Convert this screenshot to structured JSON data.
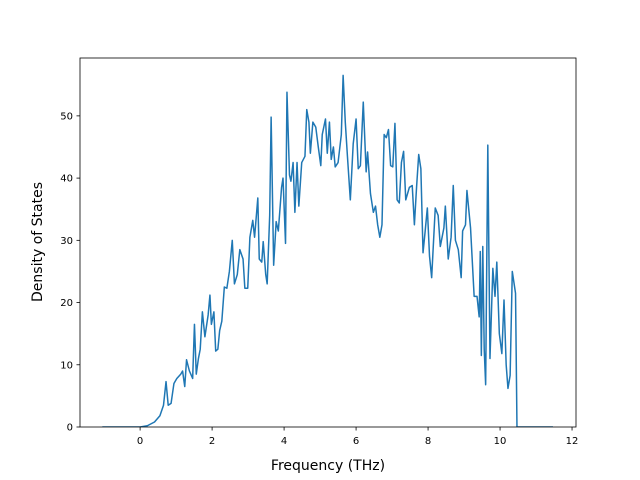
{
  "chart_data": {
    "type": "line",
    "x_label": "Frequency (THz)",
    "y_label": "Density of States",
    "color": "#1f77b4",
    "x": [
      -1.05,
      0,
      0.2,
      0.4,
      0.55,
      0.65,
      0.72,
      0.78,
      0.86,
      0.94,
      1.02,
      1.13,
      1.18,
      1.24,
      1.29,
      1.37,
      1.46,
      1.51,
      1.56,
      1.62,
      1.67,
      1.73,
      1.8,
      1.89,
      1.94,
      1.98,
      2.05,
      2.1,
      2.16,
      2.21,
      2.27,
      2.34,
      2.41,
      2.48,
      2.56,
      2.62,
      2.7,
      2.77,
      2.86,
      2.91,
      2.99,
      3.05,
      3.13,
      3.18,
      3.27,
      3.31,
      3.38,
      3.42,
      3.49,
      3.53,
      3.6,
      3.64,
      3.71,
      3.78,
      3.84,
      3.93,
      3.97,
      4.04,
      4.08,
      4.15,
      4.19,
      4.25,
      4.3,
      4.36,
      4.41,
      4.49,
      4.58,
      4.63,
      4.69,
      4.73,
      4.8,
      4.88,
      4.95,
      5.02,
      5.06,
      5.15,
      5.2,
      5.26,
      5.31,
      5.37,
      5.42,
      5.5,
      5.59,
      5.64,
      5.7,
      5.76,
      5.84,
      5.92,
      6.0,
      6.06,
      6.12,
      6.2,
      6.28,
      6.32,
      6.4,
      6.48,
      6.54,
      6.6,
      6.66,
      6.72,
      6.78,
      6.84,
      6.9,
      6.96,
      7.02,
      7.08,
      7.14,
      7.2,
      7.26,
      7.32,
      7.38,
      7.48,
      7.56,
      7.62,
      7.68,
      7.74,
      7.8,
      7.86,
      7.92,
      7.98,
      8.04,
      8.1,
      8.2,
      8.28,
      8.34,
      8.44,
      8.48,
      8.56,
      8.64,
      8.7,
      8.76,
      8.84,
      8.92,
      8.96,
      9.04,
      9.08,
      9.18,
      9.28,
      9.36,
      9.42,
      9.45,
      9.48,
      9.52,
      9.56,
      9.6,
      9.66,
      9.72,
      9.8,
      9.86,
      9.91,
      9.98,
      10.05,
      10.11,
      10.17,
      10.22,
      10.28,
      10.34,
      10.43,
      10.47,
      10.6,
      11.47
    ],
    "values": [
      0,
      0,
      0.2,
      0.8,
      1.8,
      3.5,
      7.3,
      3.5,
      3.8,
      7,
      7.8,
      8.5,
      9,
      6.5,
      10.8,
      9,
      7.8,
      16.5,
      8.5,
      11,
      12.5,
      18.5,
      14.5,
      18,
      21.2,
      16.5,
      18.5,
      12.2,
      12.5,
      15.5,
      17,
      22.5,
      22.3,
      25,
      30,
      23,
      24.5,
      28.5,
      27,
      22.3,
      22.3,
      30.5,
      33.2,
      30.5,
      36.8,
      27,
      26.5,
      29.8,
      24.5,
      23,
      34,
      49.8,
      26,
      33,
      31.5,
      38.5,
      40,
      29.5,
      53.8,
      40.5,
      39.5,
      42.5,
      34.5,
      42.5,
      35.5,
      42.5,
      43.5,
      51,
      49,
      44,
      49,
      48.2,
      45,
      42,
      47,
      49.5,
      44,
      49,
      43,
      45,
      41.8,
      42.5,
      47,
      56.5,
      49,
      43.5,
      36.5,
      45.5,
      49.5,
      41.5,
      42,
      52.2,
      41,
      44.2,
      37.5,
      34.5,
      35.5,
      32.5,
      30.5,
      32.5,
      47,
      46.5,
      47.8,
      42,
      41.8,
      48.8,
      36.5,
      36,
      42.5,
      44.3,
      36.5,
      38.5,
      38.8,
      32.5,
      38.5,
      43.8,
      41.5,
      28,
      31.5,
      35.2,
      27.5,
      24,
      35.2,
      34,
      29,
      32,
      35.5,
      27,
      30.5,
      38.8,
      30,
      28.5,
      24,
      31.5,
      32.5,
      38,
      32,
      21,
      21,
      17.7,
      28.2,
      11.5,
      29,
      12.5,
      6.8,
      45.3,
      11,
      25.5,
      21,
      26.5,
      15,
      11.8,
      20.4,
      10,
      6.2,
      8.3,
      25,
      21.5,
      0,
      0,
      0
    ],
    "xlim": [
      -1.67,
      12.11
    ],
    "ylim": [
      0,
      59.3
    ],
    "xticks": [
      0,
      2,
      4,
      6,
      8,
      10,
      12
    ],
    "yticks": [
      0,
      10,
      20,
      30,
      40,
      50
    ]
  }
}
